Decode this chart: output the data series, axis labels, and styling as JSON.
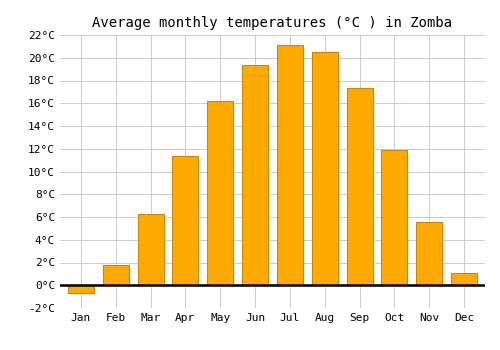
{
  "title": "Average monthly temperatures (°C ) in Zomba",
  "months": [
    "Jan",
    "Feb",
    "Mar",
    "Apr",
    "May",
    "Jun",
    "Jul",
    "Aug",
    "Sep",
    "Oct",
    "Nov",
    "Dec"
  ],
  "values": [
    -0.7,
    1.8,
    6.3,
    11.4,
    16.2,
    19.4,
    21.1,
    20.5,
    17.3,
    11.9,
    5.6,
    1.1
  ],
  "bar_color": "#FFAA00",
  "bar_edge_color": "#CC8800",
  "ylim": [
    -2,
    22
  ],
  "yticks": [
    -2,
    0,
    2,
    4,
    6,
    8,
    10,
    12,
    14,
    16,
    18,
    20,
    22
  ],
  "ytick_labels": [
    "-2°C",
    "0°C",
    "2°C",
    "4°C",
    "6°C",
    "8°C",
    "10°C",
    "12°C",
    "14°C",
    "16°C",
    "18°C",
    "20°C",
    "22°C"
  ],
  "grid_color": "#cccccc",
  "background_color": "#ffffff",
  "title_fontsize": 10,
  "tick_fontsize": 8,
  "zero_line_color": "#000000"
}
